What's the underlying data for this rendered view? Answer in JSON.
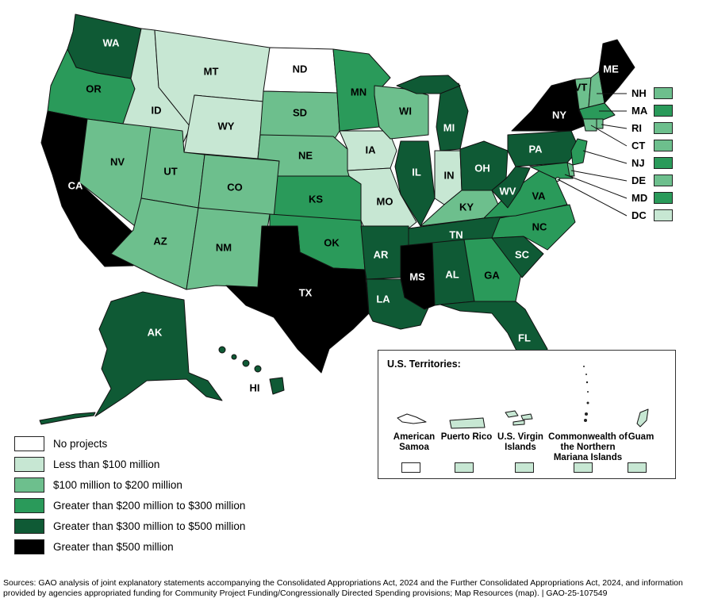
{
  "colors": {
    "none": "#ffffff",
    "lt100": "#c7e7d3",
    "100to200": "#6dbf8d",
    "200to300": "#2a9a5a",
    "300to500": "#0f5a35",
    "gt500": "#000000"
  },
  "legend": [
    {
      "key": "none",
      "label": "No projects"
    },
    {
      "key": "lt100",
      "label": "Less than $100 million"
    },
    {
      "key": "100to200",
      "label": "$100 million to $200 million"
    },
    {
      "key": "200to300",
      "label": "Greater than $200 million to $300 million"
    },
    {
      "key": "300to500",
      "label": "Greater than $300 million to $500 million"
    },
    {
      "key": "gt500",
      "label": "Greater than $500 million"
    }
  ],
  "states": {
    "WA": "300to500",
    "OR": "200to300",
    "CA": "gt500",
    "ID": "lt100",
    "NV": "100to200",
    "MT": "lt100",
    "WY": "lt100",
    "UT": "100to200",
    "AZ": "100to200",
    "CO": "100to200",
    "NM": "100to200",
    "ND": "none",
    "SD": "100to200",
    "NE": "100to200",
    "KS": "200to300",
    "OK": "200to300",
    "TX": "gt500",
    "MN": "200to300",
    "IA": "lt100",
    "MO": "lt100",
    "AR": "300to500",
    "LA": "300to500",
    "WI": "100to200",
    "IL": "300to500",
    "MI": "300to500",
    "IN": "lt100",
    "OH": "300to500",
    "KY": "100to200",
    "TN": "300to500",
    "MS": "gt500",
    "AL": "300to500",
    "GA": "200to300",
    "FL": "300to500",
    "SC": "300to500",
    "NC": "200to300",
    "VA": "200to300",
    "WV": "300to500",
    "PA": "300to500",
    "NY": "gt500",
    "ME": "gt500",
    "VT": "100to200",
    "AK": "300to500",
    "HI": "300to500",
    "NH": "100to200",
    "MA": "200to300",
    "RI": "100to200",
    "CT": "100to200",
    "NJ": "200to300",
    "DE": "100to200",
    "MD": "200to300",
    "DC": "lt100"
  },
  "northeast_callouts": [
    "NH",
    "MA",
    "RI",
    "CT",
    "NJ",
    "DE",
    "MD",
    "DC"
  ],
  "territories": {
    "title": "U.S. Territories:",
    "items": [
      {
        "name": "American Samoa",
        "key": "none"
      },
      {
        "name": "Puerto Rico",
        "key": "lt100"
      },
      {
        "name": "U.S. Virgin Islands",
        "key": "lt100"
      },
      {
        "name": "Commonwealth of the Northern Mariana Islands",
        "key": "lt100"
      },
      {
        "name": "Guam",
        "key": "lt100"
      }
    ]
  },
  "source": "Sources: GAO analysis of joint explanatory statements accompanying the Consolidated Appropriations Act, 2024 and the Further Consolidated Appropriations Act, 2024, and information provided by agencies appropriated funding for Community Project Funding/Congressionally Directed Spending provisions; Map Resources (map).  |  GAO-25-107549"
}
